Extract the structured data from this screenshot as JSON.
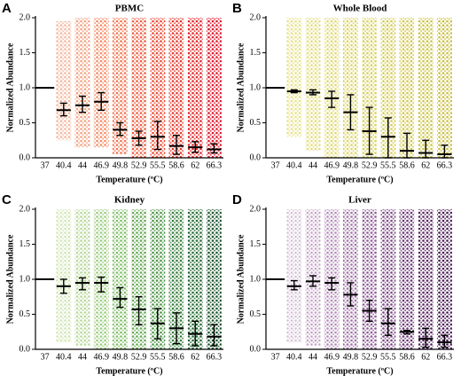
{
  "chart_data": [
    {
      "type": "strip",
      "panel_label": "A",
      "title": "PBMC",
      "xlabel": "Temperature (ºC)",
      "ylabel": "Normalized Abundance",
      "categories": [
        "37",
        "40.4",
        "44",
        "46.9",
        "49.8",
        "52.9",
        "55.5",
        "58.6",
        "62",
        "66.3"
      ],
      "values": [
        1.0,
        0.68,
        0.75,
        0.8,
        0.4,
        0.28,
        0.3,
        0.17,
        0.15,
        0.12
      ],
      "lower": [
        null,
        0.6,
        0.65,
        0.68,
        0.32,
        0.18,
        0.12,
        0.05,
        0.08,
        0.07
      ],
      "upper": [
        null,
        0.78,
        0.88,
        0.93,
        0.5,
        0.38,
        0.52,
        0.32,
        0.23,
        0.2
      ],
      "spread_min": [
        null,
        0.25,
        0.15,
        0.15,
        0.05,
        0.0,
        0.0,
        0.0,
        0.0,
        0.0
      ],
      "spread_max": [
        null,
        1.95,
        2.0,
        2.0,
        2.0,
        2.0,
        2.0,
        2.0,
        2.0,
        2.0
      ],
      "colors": [
        null,
        "#f6b59a",
        "#f5a07e",
        "#f28a64",
        "#ef744f",
        "#ec5e3f",
        "#e84a33",
        "#e4382c",
        "#e02628",
        "#dc1427"
      ],
      "ylim": [
        0,
        2
      ],
      "yticks": [
        {
          "value": 0,
          "label": "0.0"
        },
        {
          "value": 0.5,
          "label": "0.5"
        },
        {
          "value": 1,
          "label": "1.0"
        },
        {
          "value": 1.5,
          "label": "1.5"
        },
        {
          "value": 2,
          "label": "2.0"
        }
      ]
    },
    {
      "type": "strip",
      "panel_label": "B",
      "title": "Whole Blood",
      "xlabel": "Temperature (ºC)",
      "ylabel": "Normalized Abundance",
      "categories": [
        "37",
        "40.4",
        "44",
        "46.9",
        "49.8",
        "52.9",
        "55.5",
        "58.6",
        "62",
        "66.3"
      ],
      "values": [
        1.0,
        0.95,
        0.93,
        0.85,
        0.65,
        0.38,
        0.3,
        0.1,
        0.07,
        0.05
      ],
      "lower": [
        null,
        0.93,
        0.9,
        0.72,
        0.4,
        0.05,
        0.0,
        0.0,
        0.0,
        0.0
      ],
      "upper": [
        null,
        0.97,
        0.97,
        0.95,
        0.9,
        0.72,
        0.57,
        0.35,
        0.25,
        0.18
      ],
      "spread_min": [
        null,
        0.3,
        0.1,
        0.0,
        0.0,
        0.0,
        0.0,
        0.0,
        0.0,
        0.0
      ],
      "spread_max": [
        null,
        2.0,
        2.0,
        2.0,
        2.0,
        2.0,
        2.0,
        2.0,
        2.0,
        2.0
      ],
      "colors": [
        null,
        "#e8e27c",
        "#e4dd72",
        "#e0d968",
        "#dcd45f",
        "#d8d056",
        "#d4cb4e",
        "#d0c746",
        "#ccc33f",
        "#c8be38"
      ],
      "ylim": [
        0,
        2
      ],
      "yticks": [
        {
          "value": 0,
          "label": "0.0"
        },
        {
          "value": 0.5,
          "label": "0.5"
        },
        {
          "value": 1,
          "label": "1.0"
        },
        {
          "value": 1.5,
          "label": "1.5"
        },
        {
          "value": 2,
          "label": "2.0"
        }
      ]
    },
    {
      "type": "strip",
      "panel_label": "C",
      "title": "Kidney",
      "xlabel": "Temperature (ºC)",
      "ylabel": "Normalized Abundance",
      "categories": [
        "37",
        "40.4",
        "44",
        "46.9",
        "49.8",
        "52.9",
        "55.5",
        "58.6",
        "62",
        "66.3"
      ],
      "values": [
        1.0,
        0.9,
        0.95,
        0.95,
        0.72,
        0.57,
        0.37,
        0.3,
        0.22,
        0.18
      ],
      "lower": [
        null,
        0.8,
        0.85,
        0.82,
        0.6,
        0.35,
        0.15,
        0.08,
        0.05,
        0.05
      ],
      "upper": [
        null,
        1.0,
        1.02,
        1.03,
        0.88,
        0.75,
        0.58,
        0.52,
        0.4,
        0.35
      ],
      "spread_min": [
        null,
        0.1,
        0.05,
        0.0,
        0.0,
        0.0,
        0.0,
        0.0,
        0.0,
        0.0
      ],
      "spread_max": [
        null,
        2.0,
        2.0,
        2.0,
        2.0,
        2.0,
        2.0,
        2.0,
        2.0,
        2.0
      ],
      "colors": [
        null,
        "#cfe6b0",
        "#b5d995",
        "#9acb7c",
        "#7fbb66",
        "#64a853",
        "#4b9444",
        "#367e3a",
        "#256a33",
        "#1a552c"
      ],
      "ylim": [
        0,
        2
      ],
      "yticks": [
        {
          "value": 0,
          "label": "0.0"
        },
        {
          "value": 0.5,
          "label": "0.5"
        },
        {
          "value": 1,
          "label": "1.0"
        },
        {
          "value": 1.5,
          "label": "1.5"
        },
        {
          "value": 2,
          "label": "2.0"
        }
      ]
    },
    {
      "type": "strip",
      "panel_label": "D",
      "title": "Liver",
      "xlabel": "Temperature (ºC)",
      "ylabel": "Normalized Abundance",
      "categories": [
        "37",
        "40.4",
        "44",
        "46.9",
        "49.8",
        "52.9",
        "55.5",
        "58.6",
        "62",
        "66.3"
      ],
      "values": [
        1.0,
        0.9,
        0.97,
        0.95,
        0.78,
        0.55,
        0.37,
        0.25,
        0.15,
        0.1
      ],
      "lower": [
        null,
        0.85,
        0.9,
        0.85,
        0.62,
        0.4,
        0.2,
        0.22,
        0.03,
        0.03
      ],
      "upper": [
        null,
        0.98,
        1.05,
        1.02,
        0.95,
        0.7,
        0.58,
        0.27,
        0.3,
        0.2
      ],
      "spread_min": [
        null,
        0.1,
        0.05,
        0.0,
        0.0,
        0.0,
        0.0,
        0.0,
        0.0,
        0.0
      ],
      "spread_max": [
        null,
        2.0,
        2.0,
        2.0,
        2.0,
        2.0,
        2.0,
        2.0,
        2.0,
        2.0
      ],
      "colors": [
        null,
        "#d6c0d6",
        "#c5a5c7",
        "#b48ab8",
        "#a171a8",
        "#8e5a97",
        "#7c4586",
        "#6a3375",
        "#592364",
        "#481654"
      ],
      "ylim": [
        0,
        2
      ],
      "yticks": [
        {
          "value": 0,
          "label": "0.0"
        },
        {
          "value": 0.5,
          "label": "0.5"
        },
        {
          "value": 1,
          "label": "1.0"
        },
        {
          "value": 1.5,
          "label": "1.5"
        },
        {
          "value": 2,
          "label": "2.0"
        }
      ]
    }
  ]
}
